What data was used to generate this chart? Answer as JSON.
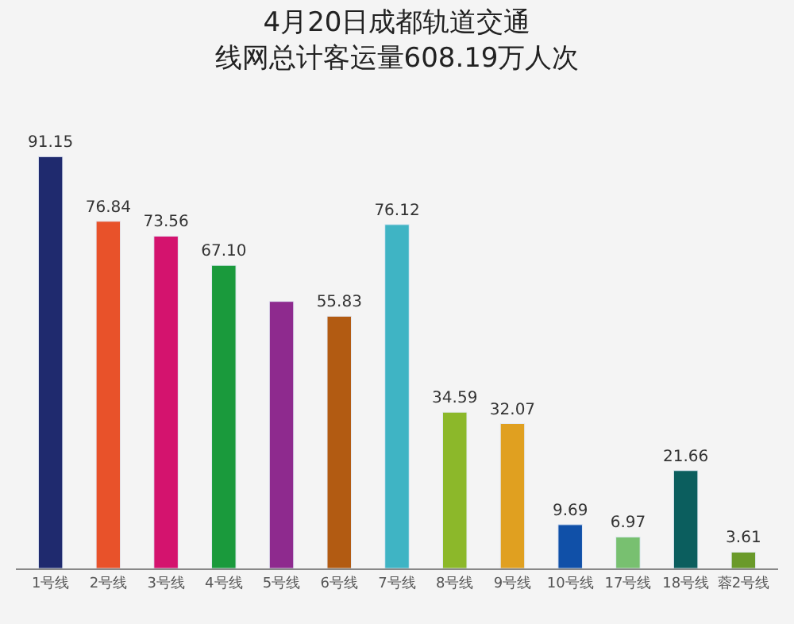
{
  "chart_data": {
    "type": "bar",
    "title": "4月20日成都轨道交通",
    "subtitle": "线网总计客运量608.19万人次",
    "categories": [
      "1号线",
      "2号线",
      "3号线",
      "4号线",
      "5号线",
      "6号线",
      "7号线",
      "8号线",
      "9号线",
      "10号线",
      "17号线",
      "18号线",
      "蓉2号线"
    ],
    "values": [
      91.15,
      76.84,
      73.56,
      67.1,
      59.1,
      55.83,
      76.12,
      34.59,
      32.07,
      9.69,
      6.97,
      21.66,
      3.61
    ],
    "value_labels": [
      "91.15",
      "76.84",
      "73.56",
      "67.10",
      null,
      "55.83",
      "76.12",
      "34.59",
      "32.07",
      "9.69",
      "6.97",
      "21.66",
      "3.61"
    ],
    "colors": [
      "#1f2a6e",
      "#e8522a",
      "#d4136e",
      "#1a9a3c",
      "#8e2a8e",
      "#b25b12",
      "#3fb4c4",
      "#8cb82a",
      "#e0a020",
      "#1050a8",
      "#78c070",
      "#0b5e5e",
      "#6a9a2a"
    ],
    "grid": false,
    "legend": false
  }
}
